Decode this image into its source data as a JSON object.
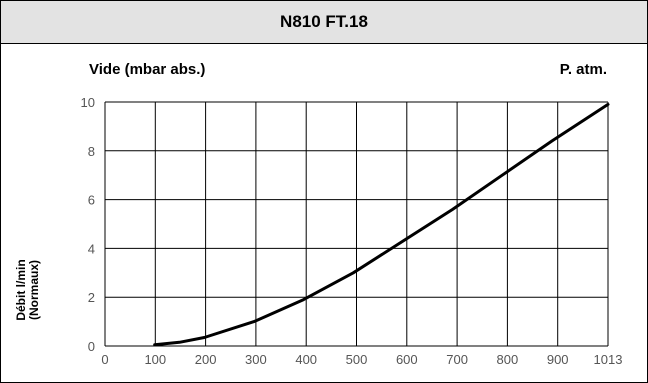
{
  "title": "N810 FT.18",
  "chart_data": {
    "type": "line",
    "x_top_left_label": "Vide (mbar abs.)",
    "x_top_right_label": "P. atm.",
    "ylabel_line1": "Débit l/min",
    "ylabel_line2": "(Normaux)",
    "x_ticks": [
      "0",
      "100",
      "200",
      "300",
      "400",
      "500",
      "600",
      "700",
      "800",
      "900",
      "1013"
    ],
    "y_ticks": [
      "0",
      "2",
      "4",
      "6",
      "8",
      "10"
    ],
    "xlim": [
      0,
      1013
    ],
    "ylim": [
      0,
      10
    ],
    "grid": true,
    "colors": {
      "line": "#000000",
      "grid": "#000000"
    },
    "series": [
      {
        "x": [
          100,
          150,
          200,
          300,
          400,
          500,
          600,
          700,
          800,
          900,
          1013
        ],
        "y": [
          0.05,
          0.15,
          0.35,
          1.0,
          1.9,
          3.0,
          4.3,
          5.6,
          7.0,
          8.4,
          9.9
        ]
      }
    ]
  }
}
